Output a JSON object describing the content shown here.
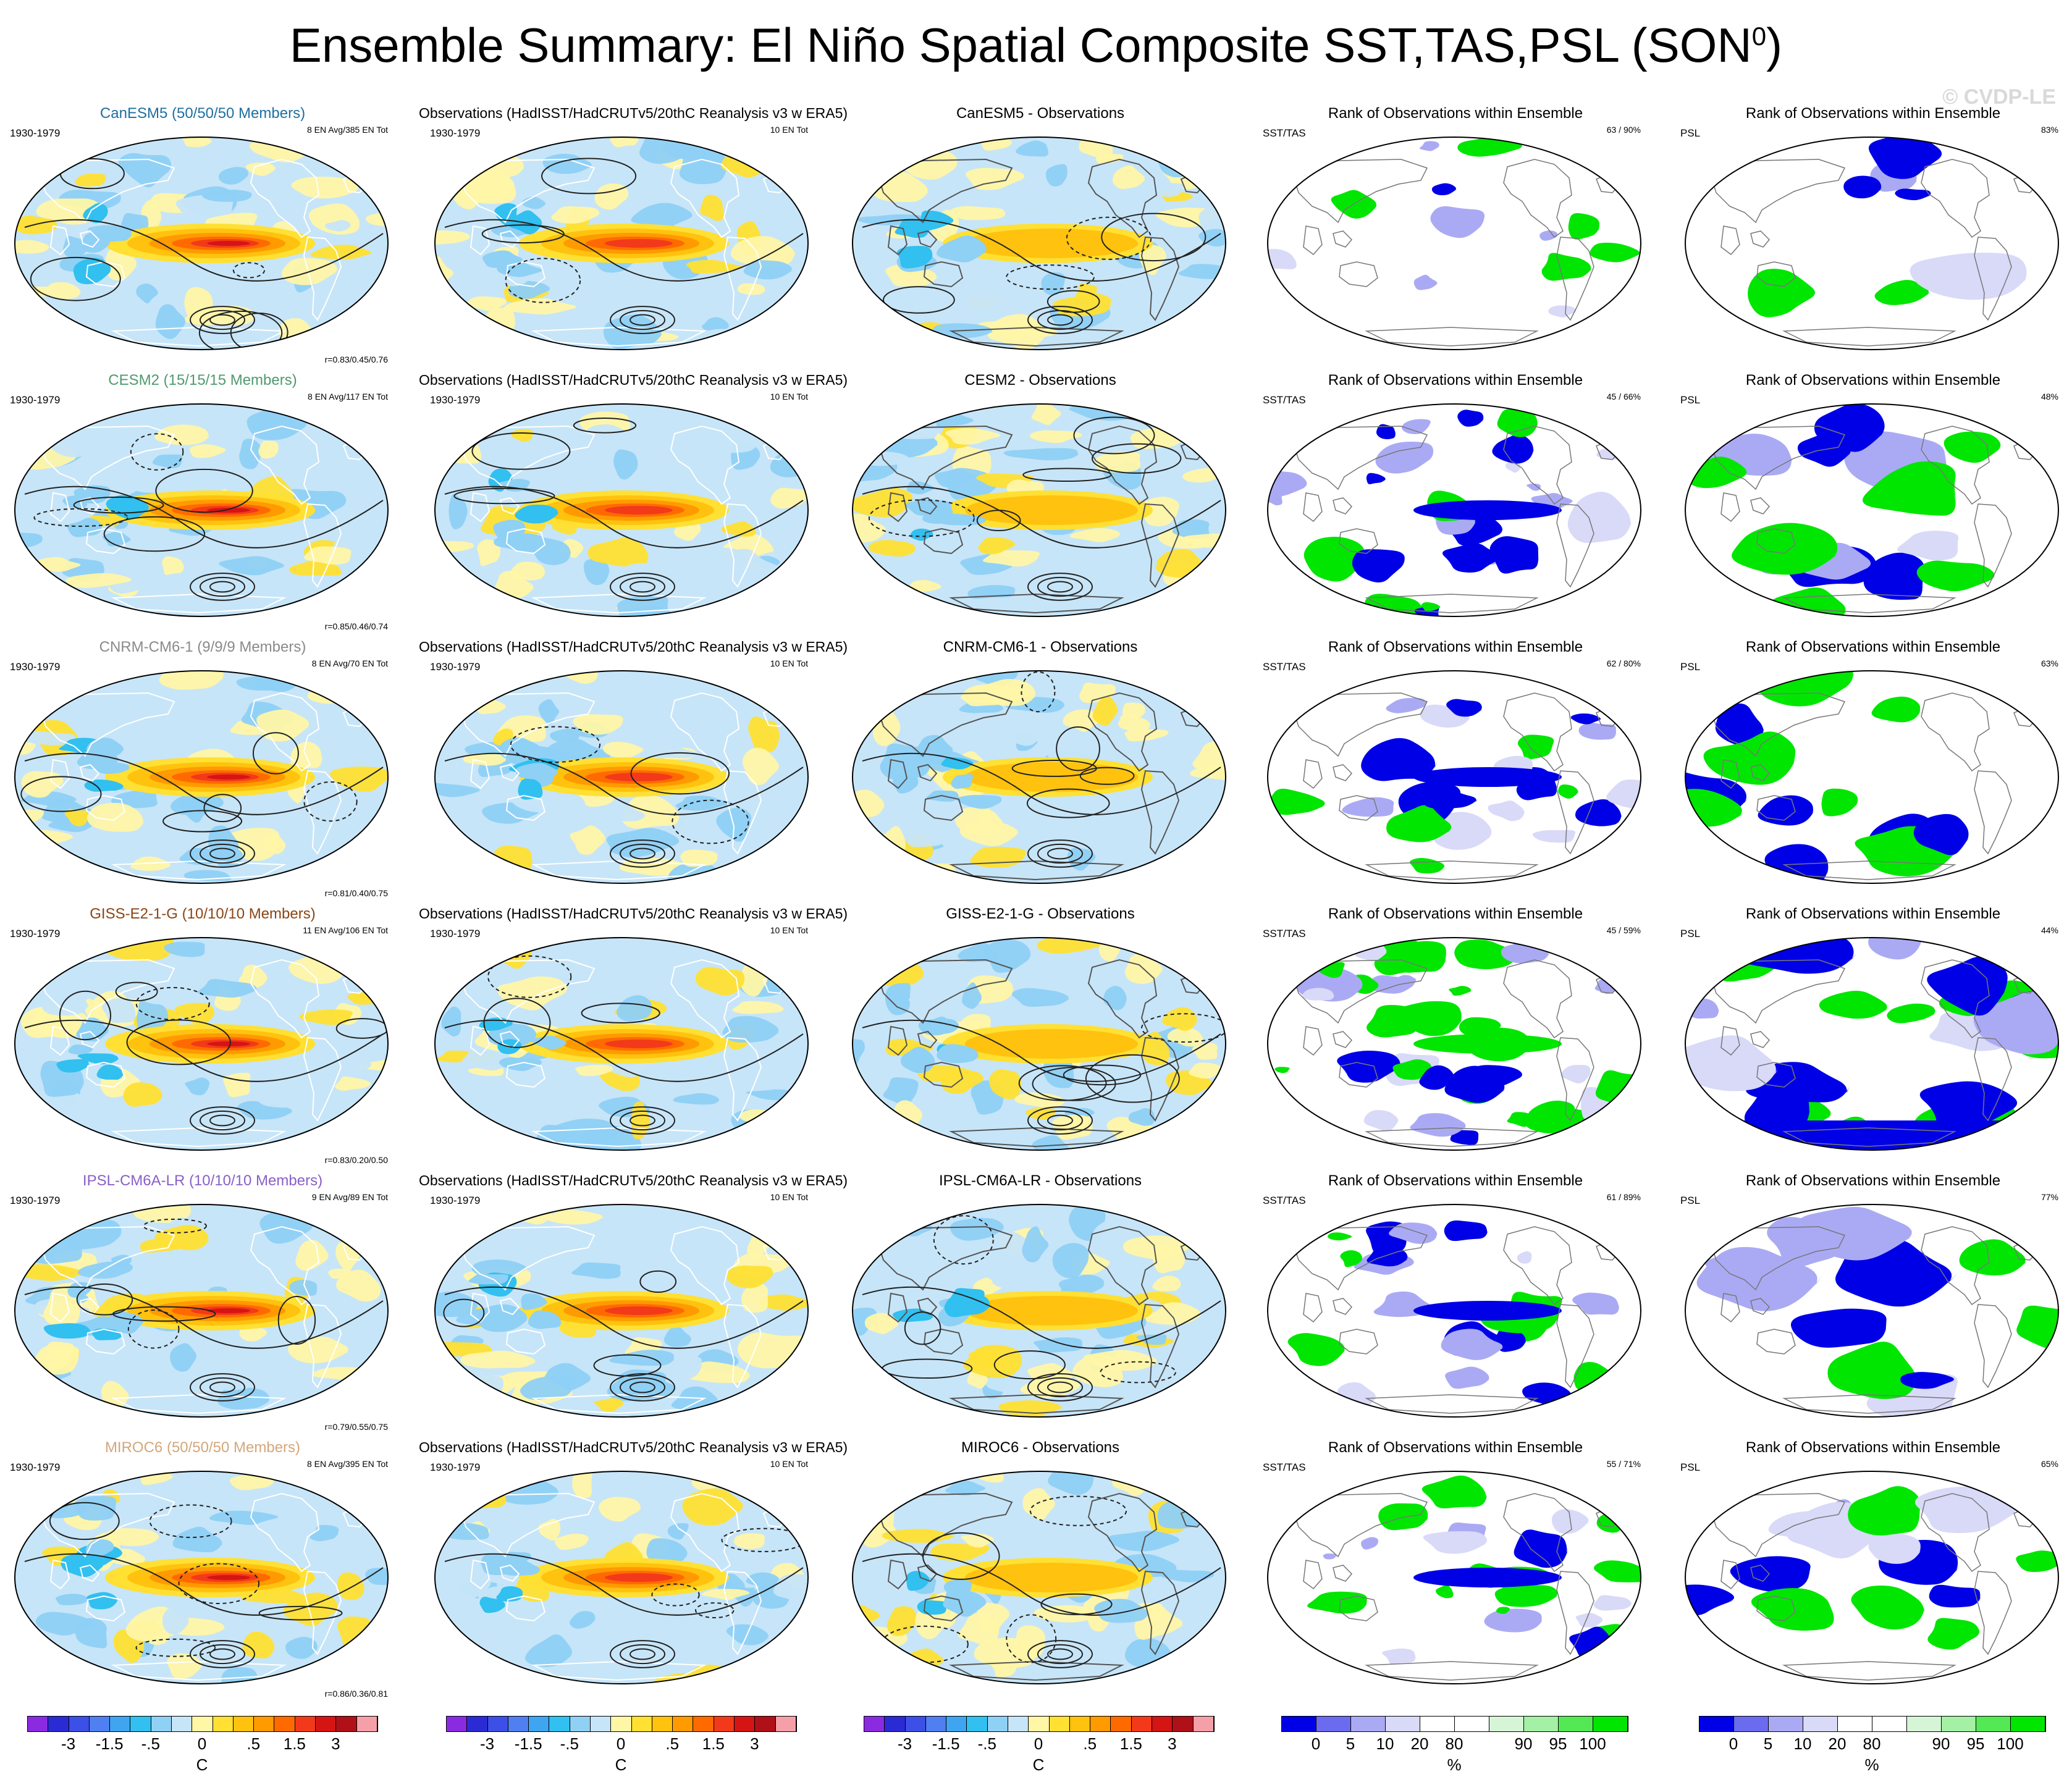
{
  "title": "Ensemble Summary: El Niño Spatial Composite SST,TAS,PSL (SON",
  "title_sup": "0",
  "title_close": ")",
  "watermark": "© CVDP-LE",
  "obs_title": "Observations (HadISST/HadCRUTv5/20thC Reanalysis v3 w ERA5)",
  "period": "1930-1979",
  "obs_count": "10 EN Tot",
  "rank_title": "Rank of Observations within Ensemble",
  "rank_var_sst": "SST/TAS",
  "rank_var_psl": "PSL",
  "rows": [
    {
      "model_title": "CanESM5 (50/50/50 Members)",
      "model_color": "#1f6f9f",
      "ens_count": "8 EN Avg/385 EN Tot",
      "corr": "r=0.83/0.45/0.76",
      "diff_title": "CanESM5 - Observations",
      "sst_rank": "63 /  90%",
      "psl_rank": "83%",
      "regime": 0
    },
    {
      "model_title": "CESM2 (15/15/15 Members)",
      "model_color": "#4f9a6f",
      "ens_count": "8 EN Avg/117 EN Tot",
      "corr": "r=0.85/0.46/0.74",
      "diff_title": "CESM2 - Observations",
      "sst_rank": "45 /  66%",
      "psl_rank": "48%",
      "regime": 1
    },
    {
      "model_title": "CNRM-CM6-1 (9/9/9 Members)",
      "model_color": "#8a8a8a",
      "ens_count": "8 EN Avg/70 EN Tot",
      "corr": "r=0.81/0.40/0.75",
      "diff_title": "CNRM-CM6-1 - Observations",
      "sst_rank": "62 /  80%",
      "psl_rank": "63%",
      "regime": 2
    },
    {
      "model_title": "GISS-E2-1-G (10/10/10 Members)",
      "model_color": "#8b4513",
      "ens_count": "11 EN Avg/106 EN Tot",
      "corr": "r=0.83/0.20/0.50",
      "diff_title": "GISS-E2-1-G - Observations",
      "sst_rank": "45 /  59%",
      "psl_rank": "44%",
      "regime": 3
    },
    {
      "model_title": "IPSL-CM6A-LR (10/10/10 Members)",
      "model_color": "#8a5fc8",
      "ens_count": "9 EN Avg/89 EN Tot",
      "corr": "r=0.79/0.55/0.75",
      "diff_title": "IPSL-CM6A-LR - Observations",
      "sst_rank": "61 /  89%",
      "psl_rank": "77%",
      "regime": 4
    },
    {
      "model_title": "MIROC6 (50/50/50 Members)",
      "model_color": "#d2a77a",
      "ens_count": "8 EN Avg/395 EN Tot",
      "corr": "r=0.86/0.36/0.81",
      "diff_title": "MIROC6 - Observations",
      "sst_rank": "55 /  71%",
      "psl_rank": "65%",
      "regime": 5
    }
  ],
  "temp_colorbar": {
    "colors": [
      "#8a2be2",
      "#2b2bd6",
      "#3c4fe6",
      "#4f7ff0",
      "#3fa5f0",
      "#31c0f0",
      "#8fd0f5",
      "#c7e5f8",
      "#fff6a6",
      "#ffe033",
      "#ffc20e",
      "#ff9a00",
      "#ff6a00",
      "#f23a1a",
      "#d51414",
      "#b01018",
      "#f5a0a8"
    ],
    "labels": [
      "-3",
      "-1.5",
      "-.5",
      "0",
      ".5",
      "1.5",
      "3"
    ],
    "unit": "C"
  },
  "rank_colorbar": {
    "colors": [
      "#0000e6",
      "#6b6bf0",
      "#aaaaf4",
      "#d9d9f8",
      "#ffffff",
      "#ffffff",
      "#d6f5d6",
      "#a4f0a4",
      "#55e855",
      "#00e600"
    ],
    "labels": [
      "0",
      "5",
      "10",
      "20",
      "80",
      "90",
      "95",
      "100"
    ],
    "unit": "%"
  }
}
